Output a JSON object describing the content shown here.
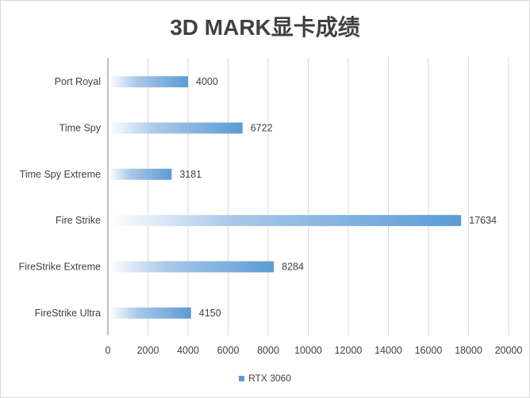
{
  "chart_data": {
    "type": "bar",
    "orientation": "horizontal",
    "title": "3D MARK显卡成绩",
    "categories": [
      "Port Royal",
      "Time Spy",
      "Time Spy Extreme",
      "Fire Strike",
      "FireStrike Extreme",
      "FireStrike Ultra"
    ],
    "series": [
      {
        "name": "RTX 3060",
        "values": [
          4000,
          6722,
          3181,
          17634,
          8284,
          4150
        ]
      }
    ],
    "xlim": [
      0,
      20000
    ],
    "xticks": [
      0,
      2000,
      4000,
      6000,
      8000,
      10000,
      12000,
      14000,
      16000,
      18000,
      20000
    ],
    "grid": true,
    "legend": "bottom",
    "bar_color": "#5b9bd5",
    "bar_fill": "gradient white to blue",
    "data_labels": true
  }
}
